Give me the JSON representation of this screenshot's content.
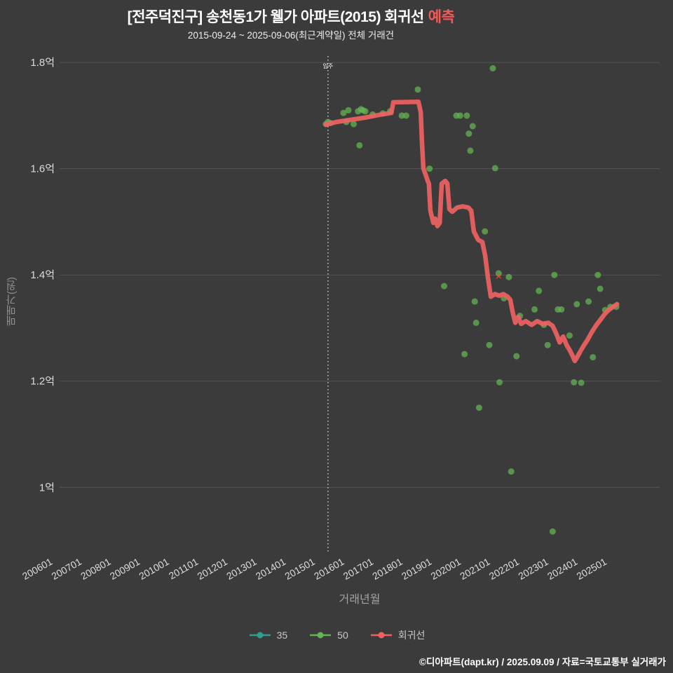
{
  "header": {
    "title_main": "[전주덕진구] 송천동1가 웰가 아파트(2015) 회귀선",
    "title_accent": "예측",
    "subtitle": "2015-09-24 ~ 2025-09-06(최근계약일) 전체 거래건"
  },
  "axes": {
    "x_title": "거래년월",
    "y_title": "매매가(원)"
  },
  "legend": {
    "items": [
      {
        "label": "35",
        "color": "#2e9e8f"
      },
      {
        "label": "50",
        "color": "#64b354"
      },
      {
        "label": "회귀선",
        "color": "#f06262"
      }
    ]
  },
  "footer": {
    "credit": "©디아파트(dapt.kr) / 2025.09.09 / 자료=국토교통부 실거래가"
  },
  "colors": {
    "background": "#3b3b3b",
    "grid": "#545454",
    "tick_text": "#dcdcdc",
    "axis_title": "#8f8f8f",
    "accent_title": "#f05a5a",
    "annotation_line": "#e8e8e8",
    "cancel_marker": "#ff4538"
  },
  "chart_data": {
    "type": "scatter",
    "title": "[전주덕진구] 송천동1가 웰가 아파트(2015) 회귀선 예측",
    "subtitle": "2015-09-24 ~ 2025-09-06(최근계약일) 전체 거래건",
    "xlabel": "거래년월",
    "ylabel": "매매가(원)",
    "unit": "억",
    "grid": "horizontal",
    "legend_position": "bottom",
    "x_range": [
      2006.22,
      2026.79
    ],
    "y_range": [
      0.875,
      1.812
    ],
    "x_tick_labels": [
      "200601",
      "200701",
      "200801",
      "200901",
      "201001",
      "201101",
      "201201",
      "201301",
      "201401",
      "201501",
      "201601",
      "201701",
      "201801",
      "201901",
      "202001",
      "202101",
      "202201",
      "202301",
      "202401",
      "202501"
    ],
    "y_ticks": [
      {
        "label": "1.8억",
        "value": 1.8
      },
      {
        "label": "1.6억",
        "value": 1.6
      },
      {
        "label": "1.4억",
        "value": 1.4
      },
      {
        "label": "1.2억",
        "value": 1.2
      },
      {
        "label": "1억",
        "value": 1.0
      }
    ],
    "annotation_vline": {
      "label": "입주",
      "x": 2015.42,
      "style": "dotted"
    },
    "cancel_marker": {
      "symbol": "✕",
      "x": 2021.27,
      "y": 1.397
    },
    "series": [
      {
        "name": "35",
        "type": "scatter",
        "points": []
      },
      {
        "name": "50",
        "type": "scatter",
        "points": [
          [
            2015.35,
            1.684
          ],
          [
            2015.42,
            1.688
          ],
          [
            2015.5,
            1.686
          ],
          [
            2015.95,
            1.705
          ],
          [
            2016.05,
            1.688
          ],
          [
            2016.12,
            1.71
          ],
          [
            2016.3,
            1.684
          ],
          [
            2016.45,
            1.708
          ],
          [
            2016.5,
            1.644
          ],
          [
            2016.55,
            1.712
          ],
          [
            2016.62,
            1.71
          ],
          [
            2016.7,
            1.708
          ],
          [
            2016.95,
            1.702
          ],
          [
            2017.3,
            1.704
          ],
          [
            2017.55,
            1.708
          ],
          [
            2017.95,
            1.7
          ],
          [
            2018.1,
            1.7
          ],
          [
            2018.5,
            1.749
          ],
          [
            2018.9,
            1.6
          ],
          [
            2019.4,
            1.379
          ],
          [
            2019.82,
            1.7
          ],
          [
            2019.95,
            1.7
          ],
          [
            2020.1,
            1.251
          ],
          [
            2020.18,
            1.7
          ],
          [
            2020.25,
            1.666
          ],
          [
            2020.3,
            1.634
          ],
          [
            2020.38,
            1.68
          ],
          [
            2020.45,
            1.35
          ],
          [
            2020.5,
            1.31
          ],
          [
            2020.6,
            1.15
          ],
          [
            2020.8,
            1.482
          ],
          [
            2020.95,
            1.268
          ],
          [
            2021.07,
            1.789
          ],
          [
            2021.15,
            1.601
          ],
          [
            2021.27,
            1.403
          ],
          [
            2021.3,
            1.198
          ],
          [
            2021.45,
            1.356
          ],
          [
            2021.62,
            1.396
          ],
          [
            2021.7,
            1.03
          ],
          [
            2021.88,
            1.247
          ],
          [
            2022.0,
            1.323
          ],
          [
            2022.5,
            1.335
          ],
          [
            2022.65,
            1.37
          ],
          [
            2022.82,
            1.306
          ],
          [
            2022.95,
            1.268
          ],
          [
            2023.12,
            0.917
          ],
          [
            2023.18,
            1.4
          ],
          [
            2023.3,
            1.335
          ],
          [
            2023.42,
            1.335
          ],
          [
            2023.7,
            1.286
          ],
          [
            2023.85,
            1.198
          ],
          [
            2023.95,
            1.345
          ],
          [
            2024.1,
            1.197
          ],
          [
            2024.35,
            1.35
          ],
          [
            2024.5,
            1.245
          ],
          [
            2024.67,
            1.4
          ],
          [
            2024.75,
            1.374
          ],
          [
            2024.92,
            1.334
          ],
          [
            2025.1,
            1.34
          ],
          [
            2025.3,
            1.34
          ]
        ]
      },
      {
        "name": "회귀선",
        "type": "line",
        "points": [
          [
            2015.35,
            1.683
          ],
          [
            2015.71,
            1.688
          ],
          [
            2016.19,
            1.692
          ],
          [
            2016.67,
            1.696
          ],
          [
            2017.15,
            1.701
          ],
          [
            2017.59,
            1.705
          ],
          [
            2017.66,
            1.725
          ],
          [
            2018.52,
            1.726
          ],
          [
            2018.6,
            1.706
          ],
          [
            2018.64,
            1.653
          ],
          [
            2018.69,
            1.601
          ],
          [
            2018.84,
            1.577
          ],
          [
            2018.88,
            1.572
          ],
          [
            2018.93,
            1.521
          ],
          [
            2019.03,
            1.498
          ],
          [
            2019.1,
            1.506
          ],
          [
            2019.17,
            1.492
          ],
          [
            2019.25,
            1.498
          ],
          [
            2019.32,
            1.572
          ],
          [
            2019.44,
            1.577
          ],
          [
            2019.51,
            1.572
          ],
          [
            2019.58,
            1.524
          ],
          [
            2019.68,
            1.519
          ],
          [
            2019.85,
            1.527
          ],
          [
            2020.04,
            1.529
          ],
          [
            2020.23,
            1.527
          ],
          [
            2020.33,
            1.521
          ],
          [
            2020.42,
            1.482
          ],
          [
            2020.57,
            1.466
          ],
          [
            2020.71,
            1.462
          ],
          [
            2020.81,
            1.436
          ],
          [
            2020.9,
            1.396
          ],
          [
            2021.0,
            1.359
          ],
          [
            2021.14,
            1.364
          ],
          [
            2021.29,
            1.361
          ],
          [
            2021.43,
            1.364
          ],
          [
            2021.58,
            1.359
          ],
          [
            2021.67,
            1.353
          ],
          [
            2021.75,
            1.33
          ],
          [
            2021.84,
            1.31
          ],
          [
            2021.94,
            1.321
          ],
          [
            2022.04,
            1.308
          ],
          [
            2022.2,
            1.313
          ],
          [
            2022.4,
            1.306
          ],
          [
            2022.59,
            1.313
          ],
          [
            2022.78,
            1.308
          ],
          [
            2022.97,
            1.31
          ],
          [
            2023.12,
            1.304
          ],
          [
            2023.24,
            1.29
          ],
          [
            2023.36,
            1.273
          ],
          [
            2023.48,
            1.284
          ],
          [
            2023.6,
            1.268
          ],
          [
            2023.72,
            1.257
          ],
          [
            2023.81,
            1.247
          ],
          [
            2023.88,
            1.238
          ],
          [
            2023.98,
            1.247
          ],
          [
            2024.08,
            1.257
          ],
          [
            2024.2,
            1.268
          ],
          [
            2024.32,
            1.278
          ],
          [
            2024.46,
            1.292
          ],
          [
            2024.61,
            1.305
          ],
          [
            2024.75,
            1.315
          ],
          [
            2024.9,
            1.326
          ],
          [
            2025.04,
            1.334
          ],
          [
            2025.19,
            1.34
          ],
          [
            2025.33,
            1.345
          ]
        ]
      }
    ]
  }
}
